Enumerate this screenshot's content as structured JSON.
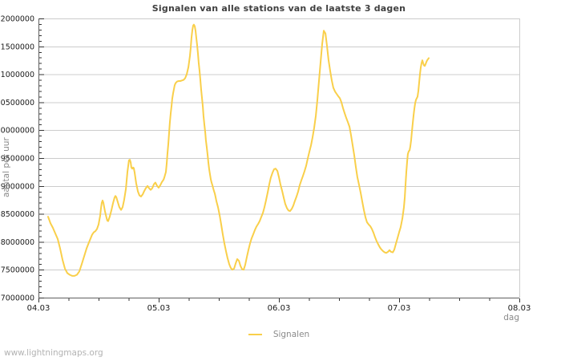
{
  "watermark": "www.lightningmaps.org",
  "colors": {
    "line": "#f9cf4a",
    "grid": "#cccccc",
    "axis": "#5f5f5f",
    "tick": "#333333",
    "tick_label": "#1a1a1a",
    "title": "#3f3f3f",
    "muted_label": "#8a8a8a",
    "watermark": "#b3b3b3",
    "background": "#ffffff"
  },
  "chart_data": {
    "type": "line",
    "title": "Signalen van alle stations van de laatste 3 dagen",
    "xlabel": "dag",
    "ylabel": "aantal per uur",
    "x_tick_labels": [
      "04.03",
      "05.03",
      "06.03",
      "07.03",
      "08.03"
    ],
    "x_tick_positions_days": [
      0,
      1,
      2,
      3,
      4
    ],
    "x_minor_step_days": 0.25,
    "xlim_days": [
      0,
      4
    ],
    "y_tick_labels": [
      "7000000",
      "7500000",
      "8000000",
      "8500000",
      "9000000",
      "9500000",
      "10000000",
      "10500000",
      "11000000",
      "11500000",
      "12000000"
    ],
    "y_tick_values": [
      7000000,
      7500000,
      8000000,
      8500000,
      9000000,
      9500000,
      10000000,
      10500000,
      11000000,
      11500000,
      12000000
    ],
    "y_minor_step": 100000,
    "ylim": [
      7000000,
      12000000
    ],
    "grid": "horizontal-major",
    "legend_position": "bottom-center",
    "series": [
      {
        "name": "Signalen",
        "color": "#f9cf4a",
        "x_unit": "days since 04.03 00:00",
        "points": [
          [
            0.08,
            8450000
          ],
          [
            0.1,
            8330000
          ],
          [
            0.12,
            8250000
          ],
          [
            0.14,
            8150000
          ],
          [
            0.16,
            8050000
          ],
          [
            0.18,
            7880000
          ],
          [
            0.2,
            7680000
          ],
          [
            0.22,
            7520000
          ],
          [
            0.24,
            7440000
          ],
          [
            0.26,
            7410000
          ],
          [
            0.28,
            7390000
          ],
          [
            0.3,
            7390000
          ],
          [
            0.32,
            7410000
          ],
          [
            0.34,
            7470000
          ],
          [
            0.36,
            7600000
          ],
          [
            0.38,
            7740000
          ],
          [
            0.4,
            7880000
          ],
          [
            0.42,
            7990000
          ],
          [
            0.433,
            8060000
          ],
          [
            0.447,
            8130000
          ],
          [
            0.46,
            8170000
          ],
          [
            0.473,
            8190000
          ],
          [
            0.487,
            8230000
          ],
          [
            0.5,
            8310000
          ],
          [
            0.513,
            8470000
          ],
          [
            0.52,
            8600000
          ],
          [
            0.527,
            8700000
          ],
          [
            0.533,
            8740000
          ],
          [
            0.54,
            8700000
          ],
          [
            0.553,
            8550000
          ],
          [
            0.567,
            8420000
          ],
          [
            0.573,
            8380000
          ],
          [
            0.58,
            8370000
          ],
          [
            0.593,
            8450000
          ],
          [
            0.607,
            8570000
          ],
          [
            0.62,
            8690000
          ],
          [
            0.633,
            8790000
          ],
          [
            0.64,
            8820000
          ],
          [
            0.647,
            8800000
          ],
          [
            0.66,
            8710000
          ],
          [
            0.673,
            8620000
          ],
          [
            0.687,
            8570000
          ],
          [
            0.7,
            8620000
          ],
          [
            0.713,
            8750000
          ],
          [
            0.727,
            8950000
          ],
          [
            0.74,
            9250000
          ],
          [
            0.753,
            9460000
          ],
          [
            0.76,
            9470000
          ],
          [
            0.767,
            9420000
          ],
          [
            0.773,
            9330000
          ],
          [
            0.78,
            9310000
          ],
          [
            0.787,
            9330000
          ],
          [
            0.793,
            9320000
          ],
          [
            0.8,
            9240000
          ],
          [
            0.813,
            9050000
          ],
          [
            0.827,
            8900000
          ],
          [
            0.84,
            8830000
          ],
          [
            0.853,
            8810000
          ],
          [
            0.867,
            8850000
          ],
          [
            0.88,
            8910000
          ],
          [
            0.893,
            8960000
          ],
          [
            0.907,
            9000000
          ],
          [
            0.92,
            8960000
          ],
          [
            0.933,
            8930000
          ],
          [
            0.947,
            8960000
          ],
          [
            0.96,
            9030000
          ],
          [
            0.973,
            9060000
          ],
          [
            0.987,
            9000000
          ],
          [
            1.0,
            8970000
          ],
          [
            1.013,
            9010000
          ],
          [
            1.027,
            9070000
          ],
          [
            1.04,
            9110000
          ],
          [
            1.047,
            9150000
          ],
          [
            1.06,
            9250000
          ],
          [
            1.067,
            9400000
          ],
          [
            1.073,
            9570000
          ],
          [
            1.08,
            9750000
          ],
          [
            1.087,
            9950000
          ],
          [
            1.093,
            10130000
          ],
          [
            1.1,
            10300000
          ],
          [
            1.107,
            10440000
          ],
          [
            1.113,
            10560000
          ],
          [
            1.12,
            10660000
          ],
          [
            1.127,
            10740000
          ],
          [
            1.133,
            10800000
          ],
          [
            1.14,
            10840000
          ],
          [
            1.153,
            10870000
          ],
          [
            1.167,
            10880000
          ],
          [
            1.18,
            10880000
          ],
          [
            1.193,
            10890000
          ],
          [
            1.207,
            10900000
          ],
          [
            1.22,
            10930000
          ],
          [
            1.233,
            11000000
          ],
          [
            1.247,
            11130000
          ],
          [
            1.26,
            11330000
          ],
          [
            1.267,
            11480000
          ],
          [
            1.273,
            11650000
          ],
          [
            1.28,
            11790000
          ],
          [
            1.287,
            11870000
          ],
          [
            1.293,
            11890000
          ],
          [
            1.3,
            11860000
          ],
          [
            1.307,
            11780000
          ],
          [
            1.313,
            11660000
          ],
          [
            1.32,
            11520000
          ],
          [
            1.327,
            11370000
          ],
          [
            1.333,
            11210000
          ],
          [
            1.34,
            11060000
          ],
          [
            1.347,
            10900000
          ],
          [
            1.353,
            10740000
          ],
          [
            1.36,
            10580000
          ],
          [
            1.367,
            10420000
          ],
          [
            1.373,
            10260000
          ],
          [
            1.38,
            10100000
          ],
          [
            1.387,
            9960000
          ],
          [
            1.393,
            9820000
          ],
          [
            1.4,
            9690000
          ],
          [
            1.407,
            9550000
          ],
          [
            1.413,
            9420000
          ],
          [
            1.42,
            9300000
          ],
          [
            1.427,
            9200000
          ],
          [
            1.433,
            9120000
          ],
          [
            1.44,
            9060000
          ],
          [
            1.447,
            9010000
          ],
          [
            1.453,
            8960000
          ],
          [
            1.46,
            8910000
          ],
          [
            1.467,
            8860000
          ],
          [
            1.473,
            8800000
          ],
          [
            1.48,
            8730000
          ],
          [
            1.493,
            8620000
          ],
          [
            1.507,
            8480000
          ],
          [
            1.52,
            8310000
          ],
          [
            1.533,
            8140000
          ],
          [
            1.547,
            7970000
          ],
          [
            1.56,
            7830000
          ],
          [
            1.573,
            7710000
          ],
          [
            1.587,
            7600000
          ],
          [
            1.6,
            7530000
          ],
          [
            1.613,
            7500000
          ],
          [
            1.627,
            7520000
          ],
          [
            1.64,
            7610000
          ],
          [
            1.653,
            7690000
          ],
          [
            1.667,
            7660000
          ],
          [
            1.68,
            7570000
          ],
          [
            1.693,
            7510000
          ],
          [
            1.707,
            7500000
          ],
          [
            1.72,
            7590000
          ],
          [
            1.733,
            7720000
          ],
          [
            1.747,
            7860000
          ],
          [
            1.76,
            7970000
          ],
          [
            1.773,
            8060000
          ],
          [
            1.787,
            8140000
          ],
          [
            1.8,
            8210000
          ],
          [
            1.813,
            8270000
          ],
          [
            1.827,
            8320000
          ],
          [
            1.84,
            8370000
          ],
          [
            1.853,
            8440000
          ],
          [
            1.867,
            8520000
          ],
          [
            1.88,
            8620000
          ],
          [
            1.893,
            8740000
          ],
          [
            1.907,
            8890000
          ],
          [
            1.92,
            9030000
          ],
          [
            1.933,
            9150000
          ],
          [
            1.947,
            9240000
          ],
          [
            1.96,
            9300000
          ],
          [
            1.973,
            9310000
          ],
          [
            1.987,
            9270000
          ],
          [
            2.0,
            9160000
          ],
          [
            2.013,
            9030000
          ],
          [
            2.027,
            8910000
          ],
          [
            2.04,
            8790000
          ],
          [
            2.053,
            8680000
          ],
          [
            2.067,
            8600000
          ],
          [
            2.08,
            8560000
          ],
          [
            2.093,
            8550000
          ],
          [
            2.107,
            8590000
          ],
          [
            2.12,
            8650000
          ],
          [
            2.133,
            8730000
          ],
          [
            2.147,
            8810000
          ],
          [
            2.16,
            8900000
          ],
          [
            2.173,
            9010000
          ],
          [
            2.187,
            9100000
          ],
          [
            2.2,
            9180000
          ],
          [
            2.213,
            9260000
          ],
          [
            2.227,
            9360000
          ],
          [
            2.24,
            9490000
          ],
          [
            2.253,
            9610000
          ],
          [
            2.267,
            9730000
          ],
          [
            2.28,
            9870000
          ],
          [
            2.293,
            10040000
          ],
          [
            2.307,
            10260000
          ],
          [
            2.32,
            10540000
          ],
          [
            2.333,
            10880000
          ],
          [
            2.347,
            11230000
          ],
          [
            2.36,
            11540000
          ],
          [
            2.373,
            11780000
          ],
          [
            2.387,
            11730000
          ],
          [
            2.4,
            11510000
          ],
          [
            2.413,
            11260000
          ],
          [
            2.427,
            11050000
          ],
          [
            2.44,
            10890000
          ],
          [
            2.453,
            10760000
          ],
          [
            2.467,
            10690000
          ],
          [
            2.48,
            10650000
          ],
          [
            2.493,
            10610000
          ],
          [
            2.507,
            10570000
          ],
          [
            2.52,
            10500000
          ],
          [
            2.533,
            10400000
          ],
          [
            2.547,
            10300000
          ],
          [
            2.56,
            10220000
          ],
          [
            2.573,
            10150000
          ],
          [
            2.587,
            10060000
          ],
          [
            2.6,
            9910000
          ],
          [
            2.613,
            9740000
          ],
          [
            2.627,
            9550000
          ],
          [
            2.64,
            9340000
          ],
          [
            2.653,
            9160000
          ],
          [
            2.667,
            9020000
          ],
          [
            2.68,
            8880000
          ],
          [
            2.693,
            8730000
          ],
          [
            2.707,
            8570000
          ],
          [
            2.72,
            8440000
          ],
          [
            2.733,
            8350000
          ],
          [
            2.747,
            8310000
          ],
          [
            2.76,
            8280000
          ],
          [
            2.773,
            8230000
          ],
          [
            2.787,
            8160000
          ],
          [
            2.8,
            8080000
          ],
          [
            2.813,
            8010000
          ],
          [
            2.827,
            7950000
          ],
          [
            2.84,
            7900000
          ],
          [
            2.853,
            7860000
          ],
          [
            2.867,
            7830000
          ],
          [
            2.88,
            7810000
          ],
          [
            2.893,
            7800000
          ],
          [
            2.907,
            7820000
          ],
          [
            2.92,
            7850000
          ],
          [
            2.933,
            7820000
          ],
          [
            2.947,
            7810000
          ],
          [
            2.96,
            7860000
          ],
          [
            2.973,
            7960000
          ],
          [
            2.987,
            8070000
          ],
          [
            3.0,
            8170000
          ],
          [
            3.013,
            8260000
          ],
          [
            3.027,
            8420000
          ],
          [
            3.04,
            8620000
          ],
          [
            3.047,
            8800000
          ],
          [
            3.053,
            9000000
          ],
          [
            3.06,
            9250000
          ],
          [
            3.067,
            9450000
          ],
          [
            3.073,
            9570000
          ],
          [
            3.08,
            9620000
          ],
          [
            3.087,
            9640000
          ],
          [
            3.093,
            9700000
          ],
          [
            3.1,
            9820000
          ],
          [
            3.107,
            9980000
          ],
          [
            3.113,
            10120000
          ],
          [
            3.12,
            10260000
          ],
          [
            3.127,
            10380000
          ],
          [
            3.133,
            10480000
          ],
          [
            3.14,
            10540000
          ],
          [
            3.153,
            10600000
          ],
          [
            3.16,
            10700000
          ],
          [
            3.167,
            10850000
          ],
          [
            3.173,
            11000000
          ],
          [
            3.18,
            11120000
          ],
          [
            3.187,
            11200000
          ],
          [
            3.193,
            11250000
          ],
          [
            3.2,
            11200000
          ],
          [
            3.207,
            11160000
          ],
          [
            3.213,
            11150000
          ],
          [
            3.22,
            11180000
          ],
          [
            3.227,
            11220000
          ],
          [
            3.233,
            11250000
          ],
          [
            3.24,
            11270000
          ],
          [
            3.247,
            11290000
          ]
        ]
      }
    ]
  }
}
